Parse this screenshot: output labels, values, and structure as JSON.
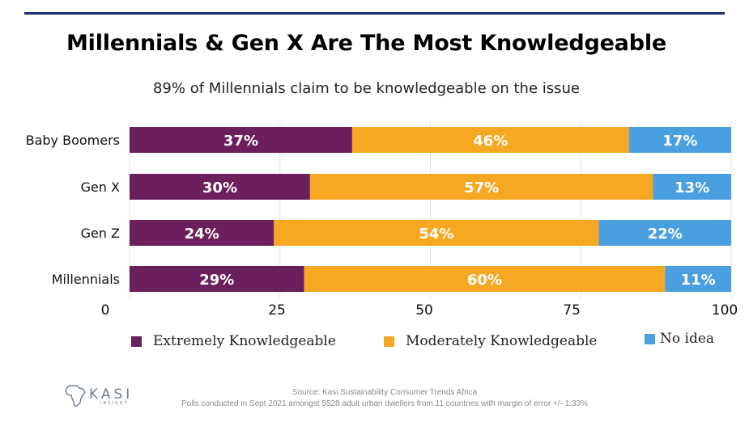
{
  "title": "Millennials & Gen X Are The Most Knowledgeable",
  "subtitle": "89% of Millennials claim to be knowledgeable on the issue",
  "chart_data": {
    "type": "bar",
    "orientation": "horizontal",
    "stacked": true,
    "categories": [
      "Baby Boomers",
      "Gen X",
      "Gen Z",
      "Millennials"
    ],
    "series": [
      {
        "name": "Extremely Knowledgeable",
        "values": [
          37,
          30,
          24,
          29
        ],
        "color": "#6b1f5c"
      },
      {
        "name": "Moderately Knowledgeable",
        "values": [
          46,
          57,
          54,
          60
        ],
        "color": "#f7a823"
      },
      {
        "name": "No idea",
        "values": [
          17,
          13,
          22,
          11
        ],
        "color": "#4a9fe0"
      }
    ],
    "data_label_suffix": "%",
    "x_ticks": [
      0,
      25,
      50,
      75,
      100
    ],
    "xlim": [
      0,
      100
    ],
    "grid": true,
    "legend_position": "bottom"
  },
  "source": {
    "line1": "Source: Kasi Sustainability Consumer Trends Africa",
    "line2": "Polls conducted in Sept 2021 amongst 5528 adult urban dwellers from 11 countries with margin of error +/- 1.33%"
  },
  "logo": {
    "text": "KASI",
    "tagline": "INSIGHT",
    "icon": "africa-map-icon"
  }
}
